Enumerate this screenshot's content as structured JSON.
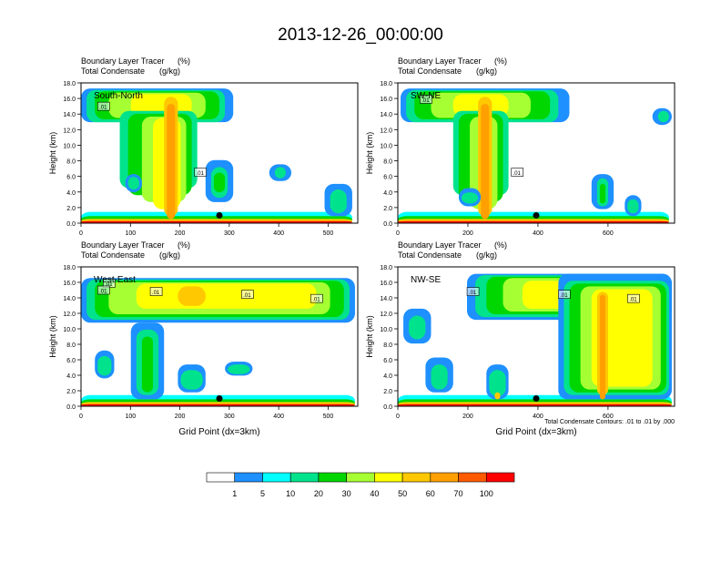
{
  "figure": {
    "title": "2013-12-26_00:00:00",
    "footnote": "Total Condensate Contours: .01 to .01 by .000",
    "colorbar": {
      "colors": [
        "#ffffff",
        "#1e90ff",
        "#00ffff",
        "#00e38c",
        "#00d700",
        "#a6ff32",
        "#ffff00",
        "#ffc800",
        "#ffa000",
        "#ff5a00",
        "#ff0000"
      ],
      "ticks": [
        "1",
        "5",
        "10",
        "20",
        "30",
        "40",
        "50",
        "60",
        "70",
        "100"
      ]
    }
  },
  "chart_data": [
    {
      "type": "heatmap",
      "title": "South-North",
      "header_left": [
        "Boundary Layer Tracer",
        "Total Condensate"
      ],
      "header_right": [
        "(%)",
        "(g/kg)"
      ],
      "xlabel": "",
      "ylabel": "Height (km)",
      "xlim": [
        0,
        560
      ],
      "ylim": [
        0,
        18
      ],
      "xticks": [
        "0",
        "100",
        "200",
        "300",
        "400",
        "500"
      ],
      "yticks": [
        "0.0",
        "2.0",
        "4.0",
        "6.0",
        "8.0",
        "10.0",
        "12.0",
        "14.0",
        "16.0",
        "18.0"
      ],
      "contour_labels": [
        ".01",
        ".01"
      ],
      "marker": {
        "x": 280,
        "y": 1.0
      }
    },
    {
      "type": "heatmap",
      "title": "SW-NE",
      "header_left": [
        "Boundary Layer Tracer",
        "Total Condensate"
      ],
      "header_right": [
        "(%)",
        "(g/kg)"
      ],
      "xlabel": "",
      "ylabel": "Height (km)",
      "xlim": [
        0,
        790
      ],
      "ylim": [
        0,
        18
      ],
      "xticks": [
        "0",
        "200",
        "400",
        "600"
      ],
      "yticks": [
        "0.0",
        "2.0",
        "4.0",
        "6.0",
        "8.0",
        "10.0",
        "12.0",
        "14.0",
        "16.0",
        "18.0"
      ],
      "contour_labels": [
        ".01",
        ".01"
      ],
      "marker": {
        "x": 395,
        "y": 1.0
      }
    },
    {
      "type": "heatmap",
      "title": "West-East",
      "header_left": [
        "Boundary Layer Tracer",
        "Total Condensate"
      ],
      "header_right": [
        "(%)",
        "(g/kg)"
      ],
      "xlabel": "Grid Point (dx=3km)",
      "ylabel": "Height (km)",
      "xlim": [
        0,
        560
      ],
      "ylim": [
        0,
        18
      ],
      "xticks": [
        "0",
        "100",
        "200",
        "300",
        "400",
        "500"
      ],
      "yticks": [
        "0.0",
        "2.0",
        "4.0",
        "6.0",
        "8.0",
        "10.0",
        "12.0",
        "14.0",
        "16.0",
        "18.0"
      ],
      "contour_labels": [
        ".01",
        ".01",
        ".01",
        ".01",
        ".01"
      ],
      "marker": {
        "x": 280,
        "y": 1.0
      }
    },
    {
      "type": "heatmap",
      "title": "NW-SE",
      "header_left": [
        "Boundary Layer Tracer",
        "Total Condensate"
      ],
      "header_right": [
        "(%)",
        "(g/kg)"
      ],
      "xlabel": "Grid Point (dx=3km)",
      "ylabel": "Height (km)",
      "xlim": [
        0,
        790
      ],
      "ylim": [
        0,
        18
      ],
      "xticks": [
        "0",
        "200",
        "400",
        "600"
      ],
      "yticks": [
        "0.0",
        "2.0",
        "4.0",
        "6.0",
        "8.0",
        "10.0",
        "12.0",
        "14.0",
        "16.0",
        "18.0"
      ],
      "contour_labels": [
        ".01",
        ".01",
        ".01"
      ],
      "marker": {
        "x": 395,
        "y": 1.0
      }
    }
  ]
}
